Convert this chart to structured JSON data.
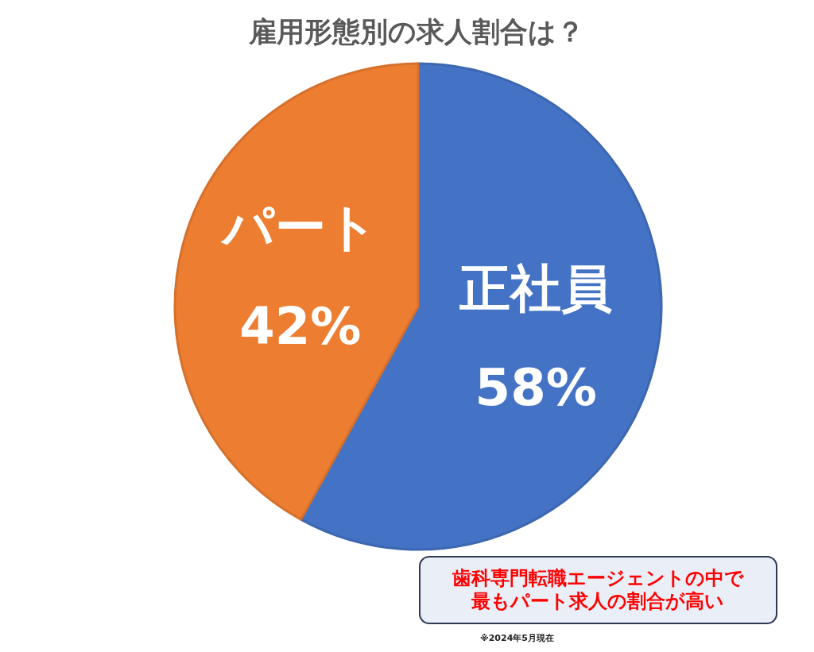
{
  "chart_data": {
    "type": "pie",
    "title": "雇用形態別の求人割合は？",
    "categories": [
      "正社員",
      "パート"
    ],
    "values": [
      58,
      42
    ],
    "value_labels": [
      "58%",
      "42%"
    ],
    "colors": [
      "#4472c4",
      "#ed7d31"
    ],
    "annotations": [
      "歯科専門転職エージェントの中で最もパート求人の割合が高い",
      "※2024年5月現在"
    ]
  }
}
